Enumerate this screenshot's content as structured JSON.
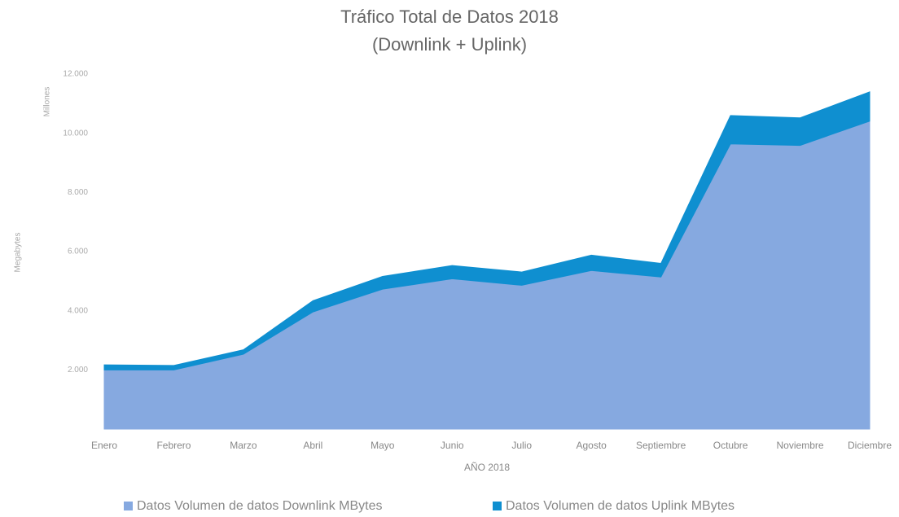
{
  "chart_data": {
    "type": "area",
    "title": "Tráfico Total de Datos 2018",
    "subtitle": "(Downlink + Uplink)",
    "y_label": "Megabytes",
    "y_unit": "Millones",
    "x_label": "AÑO 2018",
    "stacked": true,
    "categories": [
      "Enero",
      "Febrero",
      "Marzo",
      "Abril",
      "Mayo",
      "Junio",
      "Julio",
      "Agosto",
      "Septiembre",
      "Octubre",
      "Noviembre",
      "Diciembre"
    ],
    "series": [
      {
        "name": "Datos Volumen de datos Downlink MBytes",
        "color": "#86a9e0",
        "values": [
          2000,
          2000,
          2530,
          3960,
          4730,
          5080,
          4860,
          5360,
          5140,
          9640,
          9590,
          10410
        ]
      },
      {
        "name": "Datos Volumen de datos Uplink MBytes",
        "color": "#0f8fd0",
        "values": [
          170,
          150,
          150,
          380,
          430,
          450,
          450,
          520,
          460,
          960,
          930,
          990
        ]
      }
    ],
    "ylim": [
      0,
      12000
    ],
    "yticks": [
      {
        "value": 2000,
        "label": "2.000"
      },
      {
        "value": 4000,
        "label": "4.000"
      },
      {
        "value": 6000,
        "label": "6.000"
      },
      {
        "value": 8000,
        "label": "8.000"
      },
      {
        "value": 10000,
        "label": "10.000"
      },
      {
        "value": 12000,
        "label": "12.000"
      }
    ],
    "legend": "bottom"
  }
}
